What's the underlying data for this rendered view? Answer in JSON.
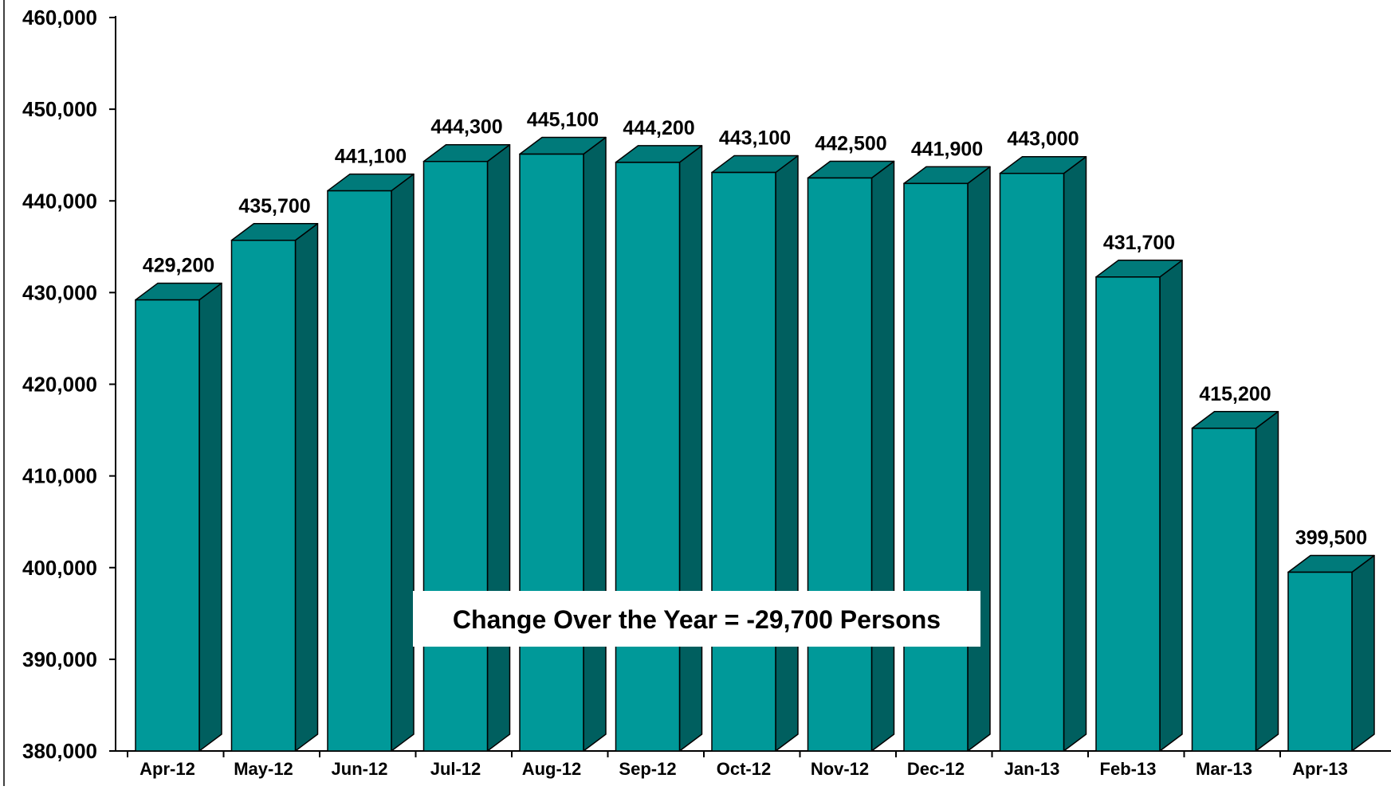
{
  "chart_data": {
    "type": "bar",
    "style": "3d",
    "categories": [
      "Apr-12",
      "May-12",
      "Jun-12",
      "Jul-12",
      "Aug-12",
      "Sep-12",
      "Oct-12",
      "Nov-12",
      "Dec-12",
      "Jan-13",
      "Feb-13",
      "Mar-13",
      "Apr-13"
    ],
    "values": [
      429200,
      435700,
      441100,
      444300,
      445100,
      444200,
      443100,
      442500,
      441900,
      443000,
      431700,
      415200,
      399500
    ],
    "data_labels": [
      "429,200",
      "435,700",
      "441,100",
      "444,300",
      "445,100",
      "444,200",
      "443,100",
      "442,500",
      "441,900",
      "443,000",
      "431,700",
      "415,200",
      "399,500"
    ],
    "yticks": [
      "380,000",
      "390,000",
      "400,000",
      "410,000",
      "420,000",
      "430,000",
      "440,000",
      "450,000",
      "460,000"
    ],
    "ylim": [
      380000,
      460000
    ],
    "annotation": "Change Over the Year = -29,700 Persons",
    "title": "",
    "xlabel": "",
    "ylabel": "",
    "grid": false,
    "legend": "none",
    "colors": {
      "bar_front": "#009999",
      "bar_top": "#007a7a",
      "bar_side": "#005f5f",
      "outline": "#000000"
    }
  }
}
